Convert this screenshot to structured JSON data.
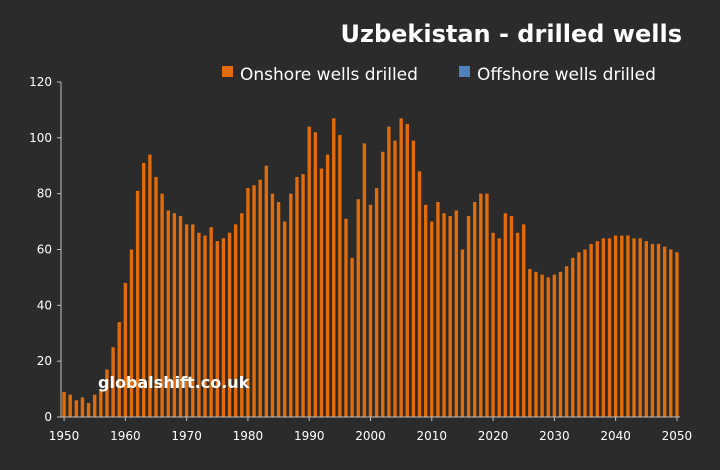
{
  "chart_data": {
    "type": "bar",
    "title": "Uzbekistan - drilled wells",
    "watermark": "globalshift.co.uk",
    "legend_position": "top-right",
    "xlim": [
      1950,
      2050
    ],
    "ylim": [
      0,
      120
    ],
    "y_ticks": [
      "0",
      "20",
      "40",
      "60",
      "80",
      "100",
      "120"
    ],
    "x_ticks": [
      "1950",
      "1960",
      "1970",
      "1980",
      "1990",
      "2000",
      "2010",
      "2020",
      "2030",
      "2040",
      "2050"
    ],
    "grid": false,
    "x": [
      1950,
      1951,
      1952,
      1953,
      1954,
      1955,
      1956,
      1957,
      1958,
      1959,
      1960,
      1961,
      1962,
      1963,
      1964,
      1965,
      1966,
      1967,
      1968,
      1969,
      1970,
      1971,
      1972,
      1973,
      1974,
      1975,
      1976,
      1977,
      1978,
      1979,
      1980,
      1981,
      1982,
      1983,
      1984,
      1985,
      1986,
      1987,
      1988,
      1989,
      1990,
      1991,
      1992,
      1993,
      1994,
      1995,
      1996,
      1997,
      1998,
      1999,
      2000,
      2001,
      2002,
      2003,
      2004,
      2005,
      2006,
      2007,
      2008,
      2009,
      2010,
      2011,
      2012,
      2013,
      2014,
      2015,
      2016,
      2017,
      2018,
      2019,
      2020,
      2021,
      2022,
      2023,
      2024,
      2025,
      2026,
      2027,
      2028,
      2029,
      2030,
      2031,
      2032,
      2033,
      2034,
      2035,
      2036,
      2037,
      2038,
      2039,
      2040,
      2041,
      2042,
      2043,
      2044,
      2045,
      2046,
      2047,
      2048,
      2049,
      2050
    ],
    "series": [
      {
        "name": "Onshore wells drilled",
        "color": "#e36c0a",
        "values": [
          9,
          8,
          6,
          7,
          5,
          8,
          10,
          17,
          25,
          34,
          48,
          60,
          81,
          91,
          94,
          86,
          80,
          74,
          73,
          72,
          69,
          69,
          66,
          65,
          68,
          63,
          64,
          66,
          69,
          73,
          82,
          83,
          85,
          90,
          80,
          77,
          70,
          80,
          86,
          87,
          104,
          102,
          89,
          94,
          107,
          101,
          71,
          57,
          78,
          98,
          76,
          82,
          95,
          104,
          99,
          107,
          105,
          99,
          88,
          76,
          70,
          77,
          73,
          72,
          74,
          60,
          72,
          77,
          80,
          80,
          66,
          64,
          73,
          72,
          66,
          69,
          53,
          52,
          51,
          50,
          51,
          52,
          54,
          57,
          59,
          60,
          62,
          63,
          64,
          64,
          65,
          65,
          65,
          64,
          64,
          63,
          62,
          62,
          61,
          60,
          59
        ]
      },
      {
        "name": "Offshore wells drilled",
        "color": "#4f81bd",
        "values": [
          0,
          0,
          0,
          0,
          0,
          0,
          0,
          0,
          0,
          0,
          0,
          0,
          0,
          0,
          0,
          0,
          0,
          0,
          0,
          0,
          0,
          0,
          0,
          0,
          0,
          0,
          0,
          0,
          0,
          0,
          0,
          0,
          0,
          0,
          0,
          0,
          0,
          0,
          0,
          0,
          0,
          0,
          0,
          0,
          0,
          0,
          0,
          0,
          0,
          0,
          0,
          0,
          0,
          0,
          0,
          0,
          0,
          0,
          0,
          0,
          0,
          0,
          0,
          0,
          0,
          0,
          0,
          0,
          0,
          0,
          0,
          0,
          0,
          0,
          0,
          0,
          0,
          0,
          0,
          0,
          0,
          0,
          0,
          0,
          0,
          0,
          0,
          0,
          0,
          0,
          0,
          0,
          0,
          0,
          0,
          0,
          0,
          0,
          0,
          0,
          0
        ]
      }
    ]
  }
}
